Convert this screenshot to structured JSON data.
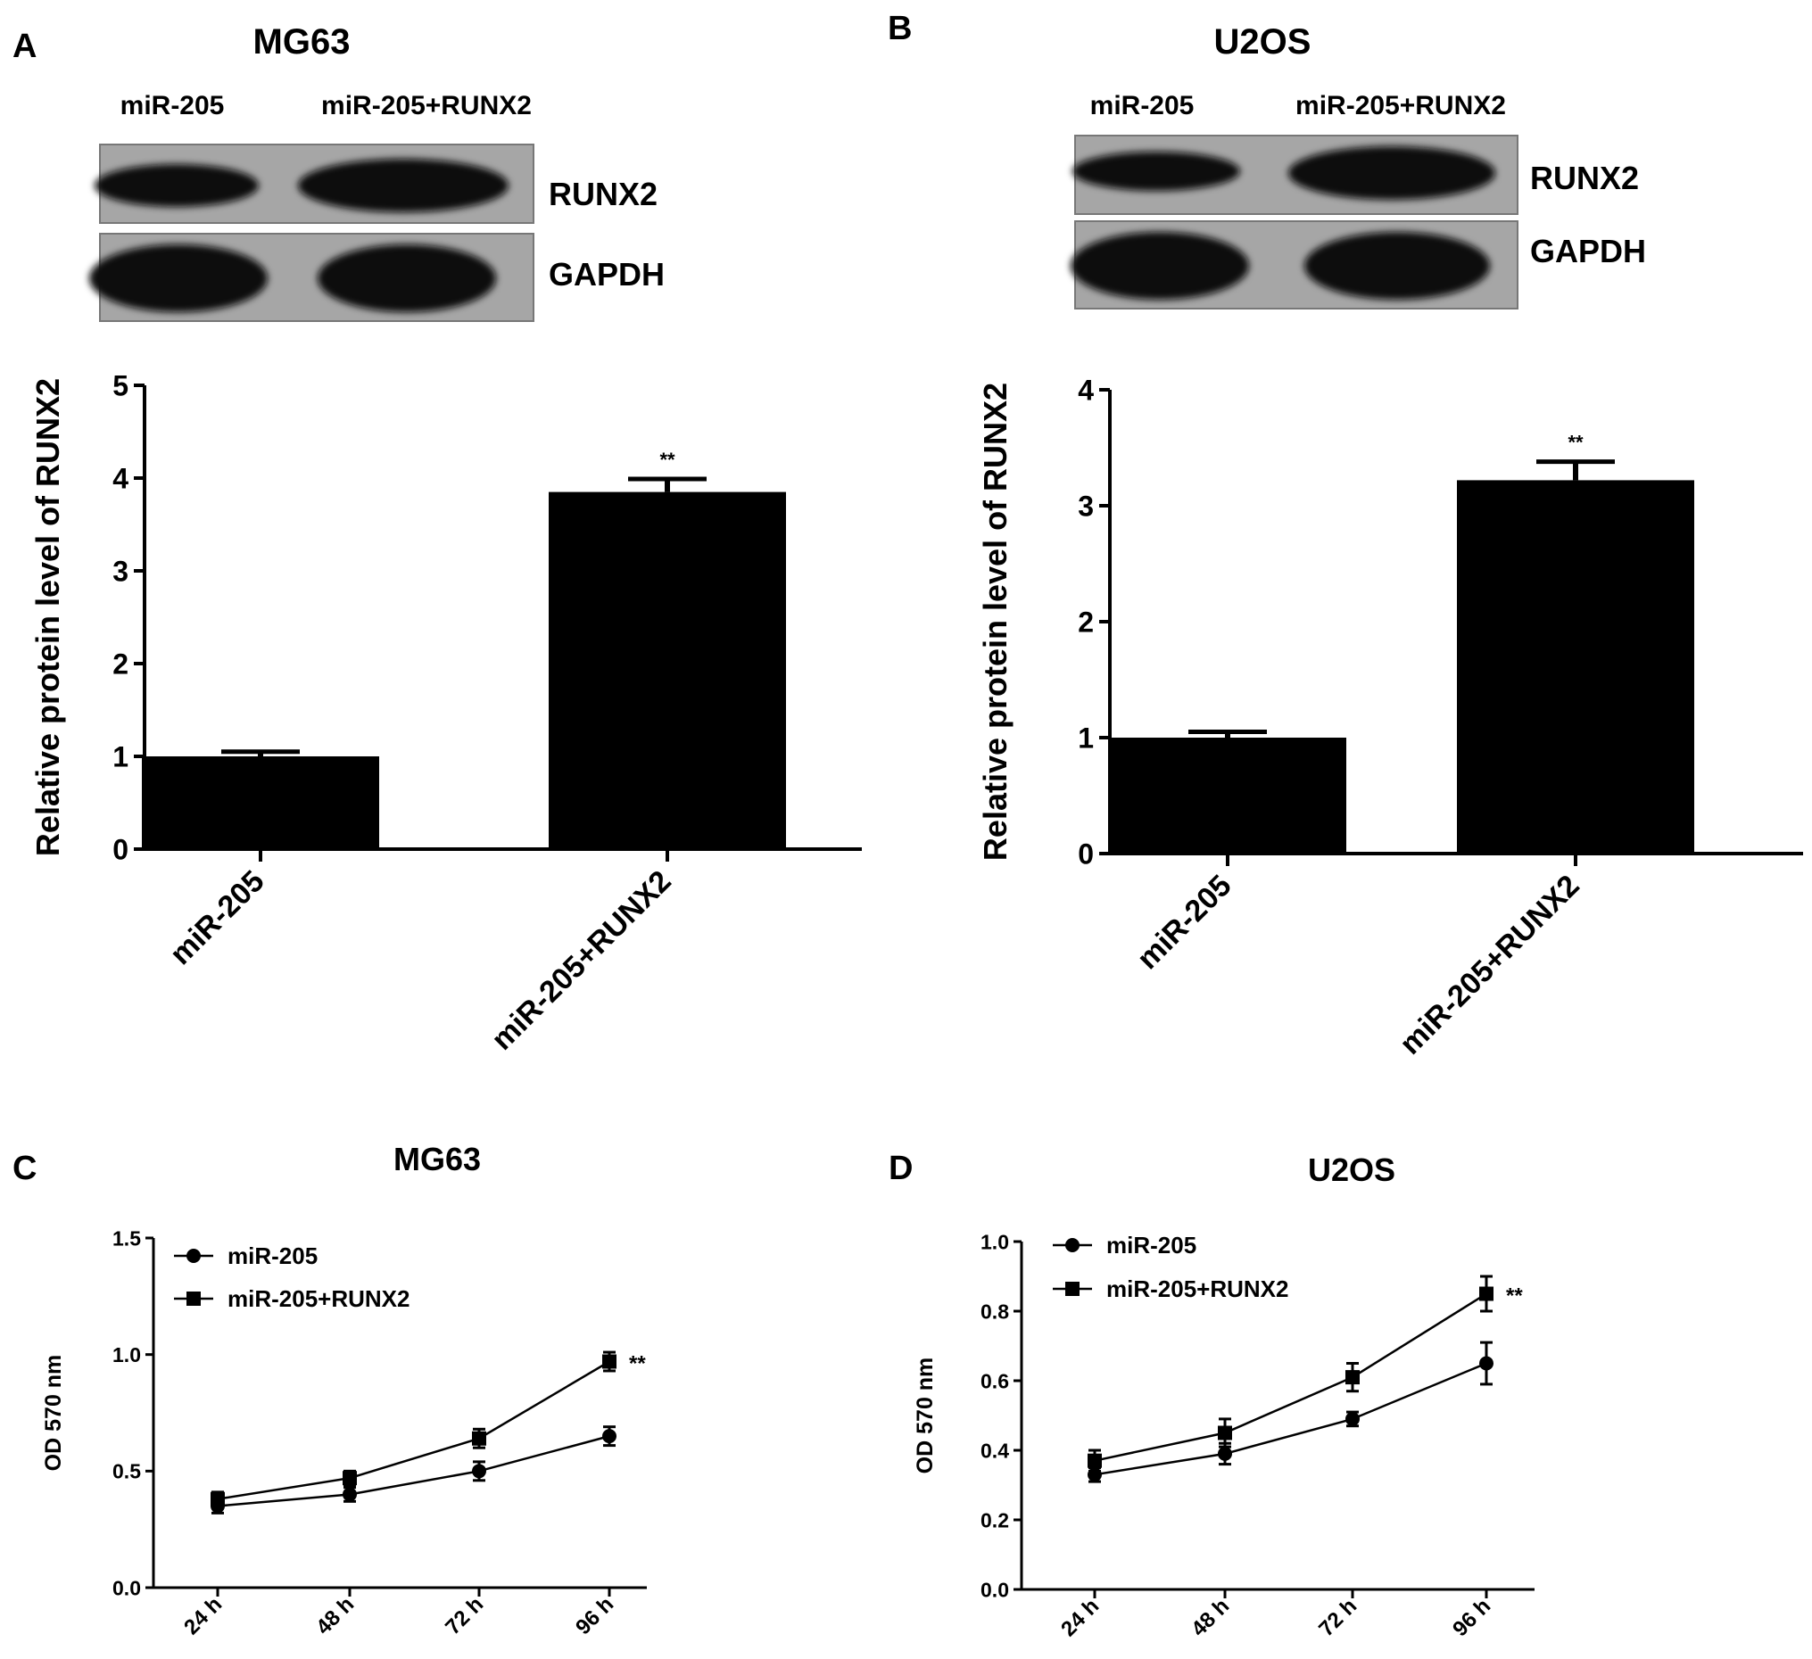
{
  "panels": {
    "A": {
      "letter": "A",
      "title": "MG63",
      "blot": {
        "lane_labels": [
          "miR-205",
          "miR-205+RUNX2"
        ],
        "row_labels": [
          "RUNX2",
          "GAPDH"
        ]
      }
    },
    "B": {
      "letter": "B",
      "title": "U2OS",
      "blot": {
        "lane_labels": [
          "miR-205",
          "miR-205+RUNX2"
        ],
        "row_labels": [
          "RUNX2",
          "GAPDH"
        ]
      }
    },
    "C": {
      "letter": "C",
      "title": "MG63"
    },
    "D": {
      "letter": "D",
      "title": "U2OS"
    }
  },
  "chart_data": [
    {
      "id": "A",
      "type": "bar",
      "ylabel": "Relative protein level of RUNX2",
      "ylim": [
        0,
        5
      ],
      "yticks": [
        "0",
        "1",
        "2",
        "3",
        "4",
        "5"
      ],
      "categories": [
        "miR-205",
        "miR-205+RUNX2"
      ],
      "values": [
        1.0,
        3.85
      ],
      "errors": [
        0.05,
        0.14
      ],
      "annotations": [
        "",
        "**"
      ],
      "bar_color": "#000000"
    },
    {
      "id": "B",
      "type": "bar",
      "ylabel": "Relative protein level of RUNX2",
      "ylim": [
        0,
        4
      ],
      "yticks": [
        "0",
        "1",
        "2",
        "3",
        "4"
      ],
      "categories": [
        "miR-205",
        "miR-205+RUNX2"
      ],
      "values": [
        1.0,
        3.22
      ],
      "errors": [
        0.05,
        0.16
      ],
      "annotations": [
        "",
        "**"
      ],
      "bar_color": "#000000"
    },
    {
      "id": "C",
      "type": "line",
      "ylabel": "OD 570 nm",
      "ylim": [
        0,
        1.5
      ],
      "yticks": [
        "0.0",
        "0.5",
        "1.0",
        "1.5"
      ],
      "categories": [
        "24 h",
        "48 h",
        "72 h",
        "96 h"
      ],
      "series": [
        {
          "name": "miR-205",
          "marker": "circle",
          "values": [
            0.35,
            0.4,
            0.5,
            0.65
          ],
          "errors": [
            0.03,
            0.03,
            0.04,
            0.04
          ]
        },
        {
          "name": "miR-205+RUNX2",
          "marker": "square",
          "values": [
            0.38,
            0.47,
            0.64,
            0.97
          ],
          "errors": [
            0.03,
            0.03,
            0.04,
            0.04
          ]
        }
      ],
      "annotation": "**"
    },
    {
      "id": "D",
      "type": "line",
      "ylabel": "OD 570 nm",
      "ylim": [
        0,
        1.0
      ],
      "yticks": [
        "0.0",
        "0.2",
        "0.4",
        "0.6",
        "0.8",
        "1.0"
      ],
      "categories": [
        "24 h",
        "48 h",
        "72 h",
        "96 h"
      ],
      "series": [
        {
          "name": "miR-205",
          "marker": "circle",
          "values": [
            0.33,
            0.39,
            0.49,
            0.65
          ],
          "errors": [
            0.02,
            0.03,
            0.02,
            0.06
          ]
        },
        {
          "name": "miR-205+RUNX2",
          "marker": "square",
          "values": [
            0.37,
            0.45,
            0.61,
            0.85
          ],
          "errors": [
            0.03,
            0.04,
            0.04,
            0.05
          ]
        }
      ],
      "annotation": "**"
    }
  ]
}
